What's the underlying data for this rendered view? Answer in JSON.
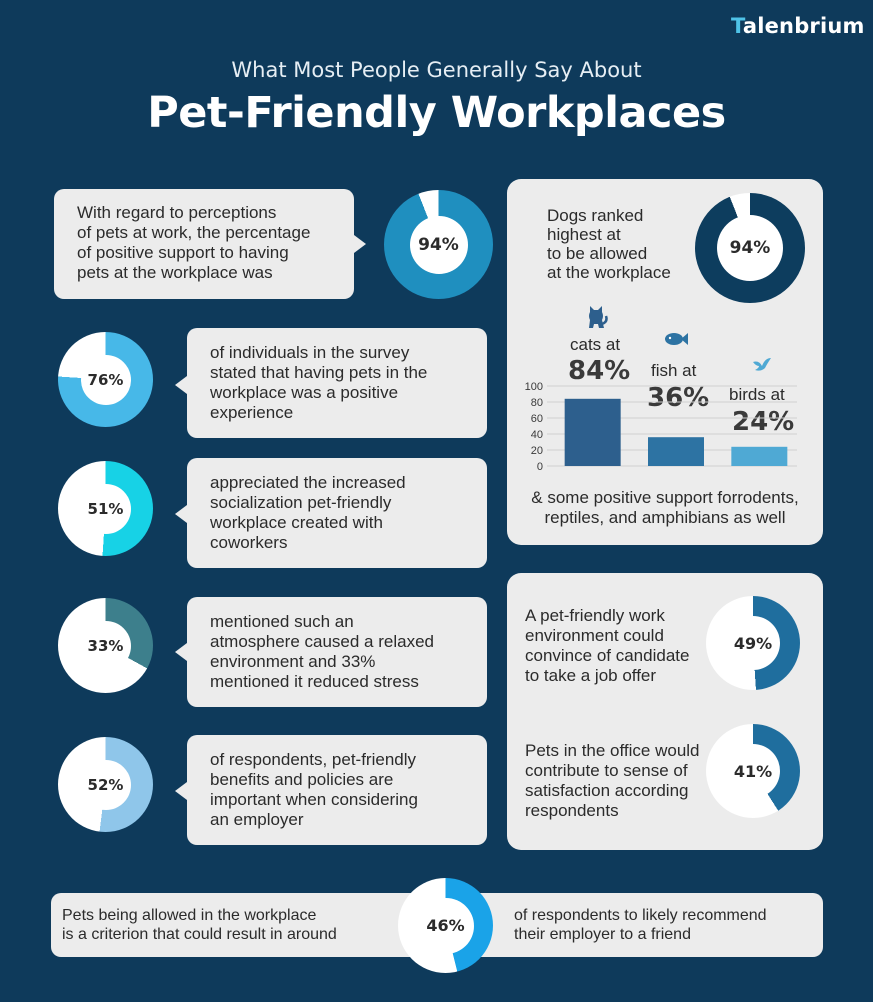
{
  "brand": {
    "logo_mark": "T",
    "logo_text": "alenbrium"
  },
  "header": {
    "subtitle": "What Most People Generally Say About",
    "title": "Pet-Friendly Workplaces"
  },
  "stats": {
    "positive_support": {
      "text_l1": "With regard to perceptions",
      "text_l2": "of pets at work, the percentage",
      "text_l3": "of positive support to having",
      "text_l4": "pets at the workplace was",
      "pct": "94%",
      "value": 94,
      "color": "#1f8fbf"
    },
    "positive_experience": {
      "text_l1": "of individuals in the survey",
      "text_l2": "stated that having pets in the",
      "text_l3": "workplace was a positive",
      "text_l4": "experience",
      "pct": "76%",
      "value": 76,
      "color": "#47b8e8"
    },
    "socialization": {
      "text_l1": "appreciated the increased",
      "text_l2": "socialization pet-friendly",
      "text_l3": "workplace created with",
      "text_l4": "coworkers",
      "pct": "51%",
      "value": 51,
      "color": "#17d2e6"
    },
    "relaxed": {
      "text_l1": "mentioned such an",
      "text_l2": "atmosphere caused a relaxed",
      "text_l3": "environment and 33%",
      "text_l4": "mentioned it reduced stress",
      "pct": "33%",
      "value": 33,
      "color": "#3d7f8c"
    },
    "benefits": {
      "text_l1": "of respondents, pet-friendly",
      "text_l2": "benefits and policies are",
      "text_l3": "important when considering",
      "text_l4": "an employer",
      "pct": "52%",
      "value": 52,
      "color": "#8fc6ea"
    },
    "dogs": {
      "text_l1": "Dogs ranked",
      "text_l2": "highest at",
      "text_l3": "to be allowed",
      "text_l4": "at the workplace",
      "pct": "94%",
      "value": 94,
      "color": "#0d3d5e"
    },
    "job_offer": {
      "text_l1": "A pet-friendly work",
      "text_l2": "environment could",
      "text_l3": "convince of candidate",
      "text_l4": "to take a job offer",
      "pct": "49%",
      "value": 49,
      "color": "#1f6e9e"
    },
    "satisfaction": {
      "text_l1": "Pets in the office would",
      "text_l2": "contribute to sense of",
      "text_l3": "satisfaction according",
      "text_l4": "respondents",
      "pct": "41%",
      "value": 41,
      "color": "#1f6e9e"
    },
    "recommend": {
      "text_left_l1": "Pets being allowed in the workplace",
      "text_left_l2": "is a criterion that could result in around",
      "text_right_l1": "of respondents to likely recommend",
      "text_right_l2": "their employer to a friend",
      "pct": "46%",
      "value": 46,
      "color": "#1aa3e8"
    }
  },
  "pets": {
    "cats_label": "cats at",
    "cats_pct": "84%",
    "fish_label": "fish at",
    "fish_pct": "36%",
    "birds_label": "birds at",
    "birds_pct": "24%",
    "footnote_l1": "& some positive support forrodents,",
    "footnote_l2": "reptiles, and amphibians as well"
  },
  "chart_data": {
    "type": "bar",
    "categories": [
      "cats",
      "fish",
      "birds"
    ],
    "values": [
      84,
      36,
      24
    ],
    "colors": [
      "#2d5f8d",
      "#2d73a3",
      "#4fa9d4"
    ],
    "ylim": [
      0,
      100
    ],
    "yticks": [
      "0",
      "20",
      "40",
      "60",
      "80",
      "100"
    ],
    "title": "",
    "xlabel": "",
    "ylabel": ""
  },
  "icons": [
    "cat-icon",
    "fish-icon",
    "bird-icon"
  ]
}
